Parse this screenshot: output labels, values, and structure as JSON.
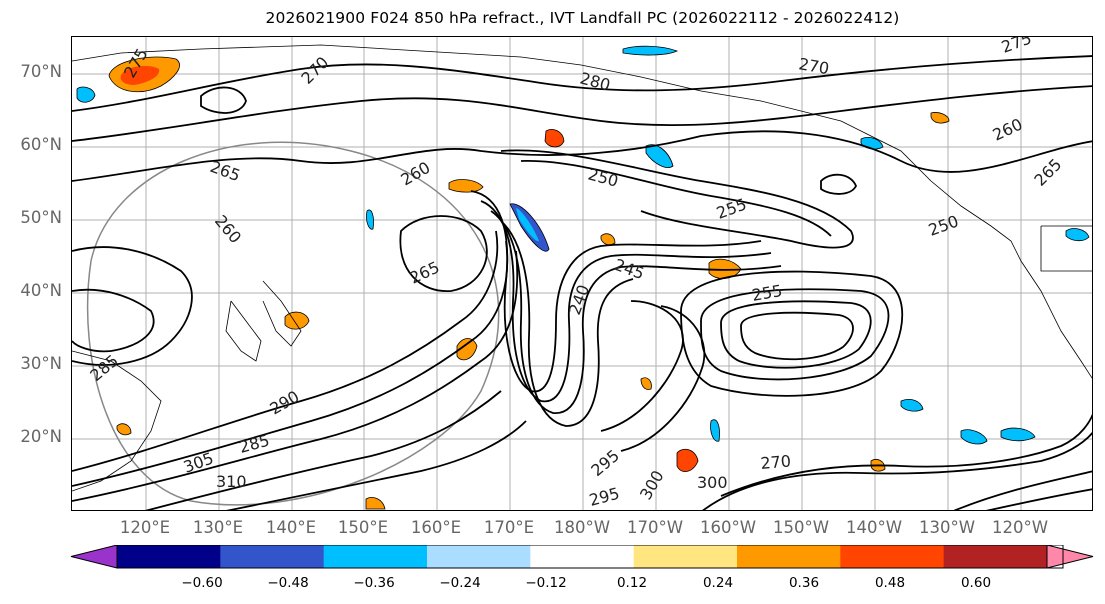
{
  "title": "2026021900 F024 850 hPa refract., IVT Landfall PC (2026022112 - 2026022412)",
  "lat_labels": [
    "70°N",
    "60°N",
    "50°N",
    "40°N",
    "30°N",
    "20°N"
  ],
  "lon_labels": [
    "120°E",
    "130°E",
    "140°E",
    "150°E",
    "160°E",
    "170°E",
    "180°W",
    "170°W",
    "160°W",
    "150°W",
    "140°W",
    "130°W",
    "120°W"
  ],
  "contour_labels": [
    "275",
    "270",
    "265",
    "260",
    "255",
    "250",
    "245",
    "240",
    "285",
    "295",
    "300",
    "305",
    "310",
    "280",
    "290",
    "265",
    "270",
    "260",
    "250",
    "255",
    "260",
    "265",
    "270",
    "275",
    "300",
    "295",
    "285"
  ],
  "colorbar": {
    "ticks": [
      "−0.60",
      "−0.48",
      "−0.36",
      "−0.24",
      "−0.12",
      "0.12",
      "0.24",
      "0.36",
      "0.48",
      "0.60"
    ],
    "colors": [
      "#9933cc",
      "#000088",
      "#3355cc",
      "#00bfff",
      "#aaddff",
      "#ffffff",
      "#ffe680",
      "#ff9900",
      "#ff4500",
      "#b22222",
      "#ff88aa"
    ]
  }
}
